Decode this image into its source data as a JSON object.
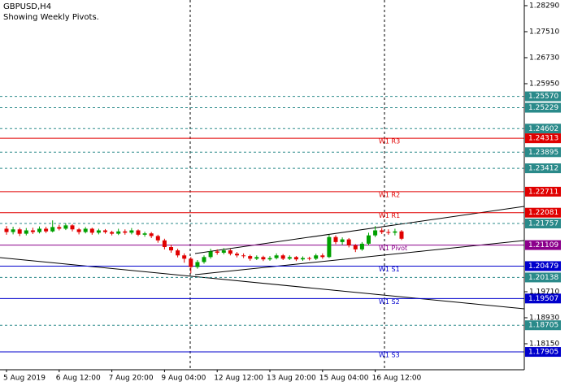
{
  "chart_data": {
    "type": "candlestick",
    "title": "GBPUSD,H4",
    "subtitle": "Showing Weekly Pivots.",
    "categories": [
      "5 Aug 2019",
      null,
      null,
      null,
      null,
      null,
      null,
      null,
      "6 Aug 12:00",
      null,
      null,
      null,
      null,
      null,
      null,
      null,
      "7 Aug 20:00",
      null,
      null,
      null,
      null,
      null,
      null,
      null,
      "9 Aug 04:00",
      null,
      null,
      null,
      null,
      null,
      null,
      null,
      "12 Aug 12:00",
      null,
      null,
      null,
      null,
      null,
      null,
      null,
      "13 Aug 20:00",
      null,
      null,
      null,
      null,
      null,
      null,
      null,
      "15 Aug 04:00",
      null,
      null,
      null,
      null,
      null,
      null,
      null,
      "16 Aug 12:00",
      null,
      null,
      null,
      null
    ],
    "open": [
      1.216,
      1.215,
      1.2158,
      1.2145,
      1.2155,
      1.215,
      1.216,
      1.2152,
      1.2165,
      1.216,
      1.217,
      1.2158,
      1.215,
      1.216,
      1.2148,
      1.2155,
      1.215,
      1.2145,
      1.2152,
      1.2148,
      1.2155,
      1.2142,
      1.2146,
      1.2138,
      1.2125,
      1.2105,
      1.2095,
      1.208,
      1.207,
      1.2045,
      1.206,
      1.2075,
      1.2092,
      1.2088,
      1.2095,
      1.2085,
      1.208,
      1.2078,
      1.207,
      1.2075,
      1.2068,
      1.2072,
      1.208,
      1.207,
      1.2075,
      1.2068,
      1.2072,
      1.207,
      1.208,
      1.2075,
      1.2135,
      1.212,
      1.2128,
      1.211,
      1.2098,
      1.2115,
      1.214,
      1.2155,
      1.215,
      1.2148,
      1.2152
    ],
    "high": [
      1.2168,
      1.2166,
      1.2163,
      1.2162,
      1.2163,
      1.2167,
      1.2166,
      1.2185,
      1.2172,
      1.2176,
      1.2174,
      1.2162,
      1.2165,
      1.2163,
      1.216,
      1.2159,
      1.2154,
      1.216,
      1.2158,
      1.2162,
      1.2158,
      1.2151,
      1.215,
      1.2142,
      1.213,
      1.2112,
      1.21,
      1.2086,
      1.2075,
      1.2066,
      1.208,
      1.21,
      1.2098,
      1.2102,
      1.2099,
      1.209,
      1.2086,
      1.2082,
      1.208,
      1.2079,
      1.2078,
      1.2086,
      1.2084,
      1.208,
      1.2078,
      1.2077,
      1.2076,
      1.2085,
      1.2086,
      1.2142,
      1.214,
      1.2134,
      1.2132,
      1.2114,
      1.212,
      1.2148,
      1.2168,
      1.2162,
      1.2158,
      1.216,
      1.2156
    ],
    "low": [
      1.2142,
      1.2143,
      1.2138,
      1.214,
      1.2144,
      1.2146,
      1.2147,
      1.2149,
      1.2155,
      1.2156,
      1.2152,
      1.2143,
      1.2146,
      1.2142,
      1.2143,
      1.2145,
      1.214,
      1.2141,
      1.2142,
      1.2143,
      1.2138,
      1.2136,
      1.2132,
      1.2118,
      1.2098,
      1.2088,
      1.2074,
      1.2058,
      1.2026,
      1.204,
      1.2055,
      1.207,
      1.2082,
      1.2083,
      1.208,
      1.2074,
      1.2072,
      1.2064,
      1.2066,
      1.2063,
      1.2064,
      1.2068,
      1.2066,
      1.2066,
      1.2063,
      1.2064,
      1.2065,
      1.2066,
      1.207,
      1.2072,
      1.2114,
      1.2112,
      1.2104,
      1.209,
      1.2094,
      1.211,
      1.2135,
      1.2144,
      1.2142,
      1.214,
      1.2126
    ],
    "close": [
      1.215,
      1.2158,
      1.2145,
      1.2155,
      1.215,
      1.216,
      1.2152,
      1.2165,
      1.216,
      1.217,
      1.2158,
      1.215,
      1.216,
      1.2148,
      1.2155,
      1.215,
      1.2145,
      1.2152,
      1.2148,
      1.2155,
      1.2142,
      1.2146,
      1.2138,
      1.2125,
      1.2105,
      1.2095,
      1.208,
      1.207,
      1.2045,
      1.206,
      1.2075,
      1.2092,
      1.2088,
      1.2095,
      1.2085,
      1.208,
      1.2078,
      1.207,
      1.2075,
      1.2068,
      1.2072,
      1.208,
      1.207,
      1.2075,
      1.2068,
      1.2072,
      1.207,
      1.208,
      1.2075,
      1.2135,
      1.212,
      1.2128,
      1.211,
      1.2098,
      1.2115,
      1.214,
      1.2155,
      1.215,
      1.2148,
      1.2152,
      1.213
    ],
    "up_color": "#00a000",
    "down_color": "#e00000",
    "ylim": [
      1.1737,
      1.2846
    ],
    "yticks": [
      {
        "value": 1.2829,
        "label": "1.28290"
      },
      {
        "value": 1.2751,
        "label": "1.27510"
      },
      {
        "value": 1.2673,
        "label": "1.26730"
      },
      {
        "value": 1.2595,
        "label": "1.25950"
      },
      {
        "value": 1.1971,
        "label": "1.19710"
      },
      {
        "value": 1.1893,
        "label": "1.18930"
      },
      {
        "value": 1.1815,
        "label": "1.18150"
      }
    ],
    "levels": [
      {
        "value": 1.2557,
        "value_label": "1.25570",
        "color": "#2a8a8a",
        "style": "dashed"
      },
      {
        "value": 1.25229,
        "value_label": "1.25229",
        "color": "#2a8a8a",
        "style": "dashed"
      },
      {
        "value": 1.24602,
        "value_label": "1.24602",
        "color": "#2a8a8a",
        "style": "dashed"
      },
      {
        "name": "W1 R3",
        "value": 1.24313,
        "value_label": "1.24313",
        "color": "#e00000",
        "style": "solid"
      },
      {
        "value": 1.23895,
        "value_label": "1.23895",
        "color": "#2a8a8a",
        "style": "dashed"
      },
      {
        "value": 1.23412,
        "value_label": "1.23412",
        "color": "#2a8a8a",
        "style": "dashed"
      },
      {
        "name": "W1 R2",
        "value": 1.22711,
        "value_label": "1.22711",
        "color": "#e00000",
        "style": "solid"
      },
      {
        "name": "W1 R1",
        "value": 1.22081,
        "value_label": "1.22081",
        "color": "#e00000",
        "style": "solid"
      },
      {
        "value": 1.21757,
        "value_label": "1.21757",
        "color": "#2a8a8a",
        "style": "dashed"
      },
      {
        "name": "W1 Pivot",
        "value": 1.21109,
        "value_label": "1.21109",
        "color": "#8b008b",
        "style": "solid"
      },
      {
        "name": "W1 S1",
        "value": 1.20479,
        "value_label": "1.20479",
        "color": "#0000cc",
        "style": "solid"
      },
      {
        "value": 1.20138,
        "value_label": "1.20138",
        "color": "#2a8a8a",
        "style": "dashed"
      },
      {
        "name": "W1 S2",
        "value": 1.19507,
        "value_label": "1.19507",
        "color": "#0000cc",
        "style": "solid"
      },
      {
        "value": 1.18705,
        "value_label": "1.18705",
        "color": "#2a8a8a",
        "style": "dashed"
      },
      {
        "name": "W1 S3",
        "value": 1.17905,
        "value_label": "1.17905",
        "color": "#0000cc",
        "style": "solid"
      }
    ]
  }
}
